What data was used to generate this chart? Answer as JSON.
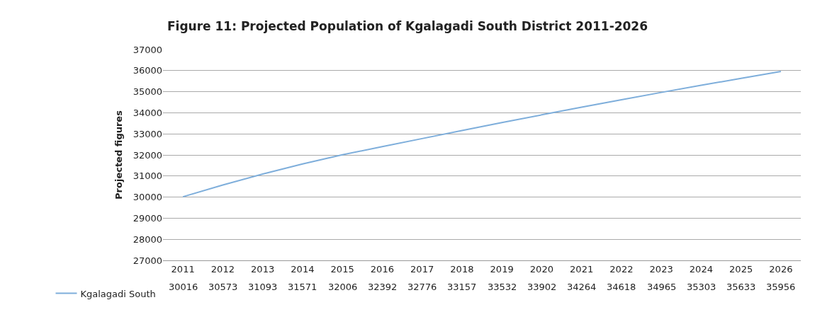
{
  "chart_data": {
    "type": "line",
    "title": "Figure 11: Projected Population of Kgalagadi South District 2011-2026",
    "ylabel": "Projected figures",
    "categories": [
      "2011",
      "2012",
      "2013",
      "2014",
      "2015",
      "2016",
      "2017",
      "2018",
      "2019",
      "2020",
      "2021",
      "2022",
      "2023",
      "2024",
      "2025",
      "2026"
    ],
    "series": [
      {
        "name": "Kgalagadi South",
        "color": "#7eaedb",
        "values": [
          30016,
          30573,
          31093,
          31571,
          32006,
          32392,
          32776,
          33157,
          33532,
          33902,
          34264,
          34618,
          34965,
          35303,
          35633,
          35956
        ]
      }
    ],
    "ylim": [
      27000,
      37000
    ],
    "yticks": [
      27000,
      28000,
      29000,
      30000,
      31000,
      32000,
      33000,
      34000,
      35000,
      36000,
      37000
    ],
    "grid": "y",
    "legend": "bottom left",
    "data_labels": true,
    "marker": "none",
    "line_style": "solid"
  }
}
